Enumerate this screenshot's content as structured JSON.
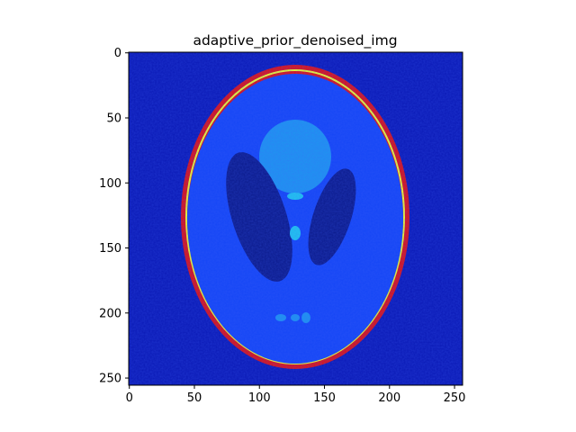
{
  "title": "adaptive_prior_denoised_img",
  "chart_data": {
    "type": "heatmap",
    "title": "adaptive_prior_denoised_img",
    "image_size": [
      256,
      256
    ],
    "colormap": "jet",
    "xlim": [
      0,
      255
    ],
    "ylim": [
      255,
      0
    ],
    "x_ticks": [
      "0",
      "50",
      "100",
      "150",
      "200",
      "250"
    ],
    "y_ticks": [
      "0",
      "50",
      "100",
      "150",
      "200",
      "250"
    ],
    "grid": false,
    "legend": "none",
    "colors": {
      "background": "#0a19b5",
      "body": "#1546f5",
      "ring": "#e01010",
      "ring_edge": "#f4ff2a",
      "dark_ellipse": "#0b1a8a",
      "head_blob": "#1e95f0",
      "small_spot": "#20c8ee"
    }
  }
}
